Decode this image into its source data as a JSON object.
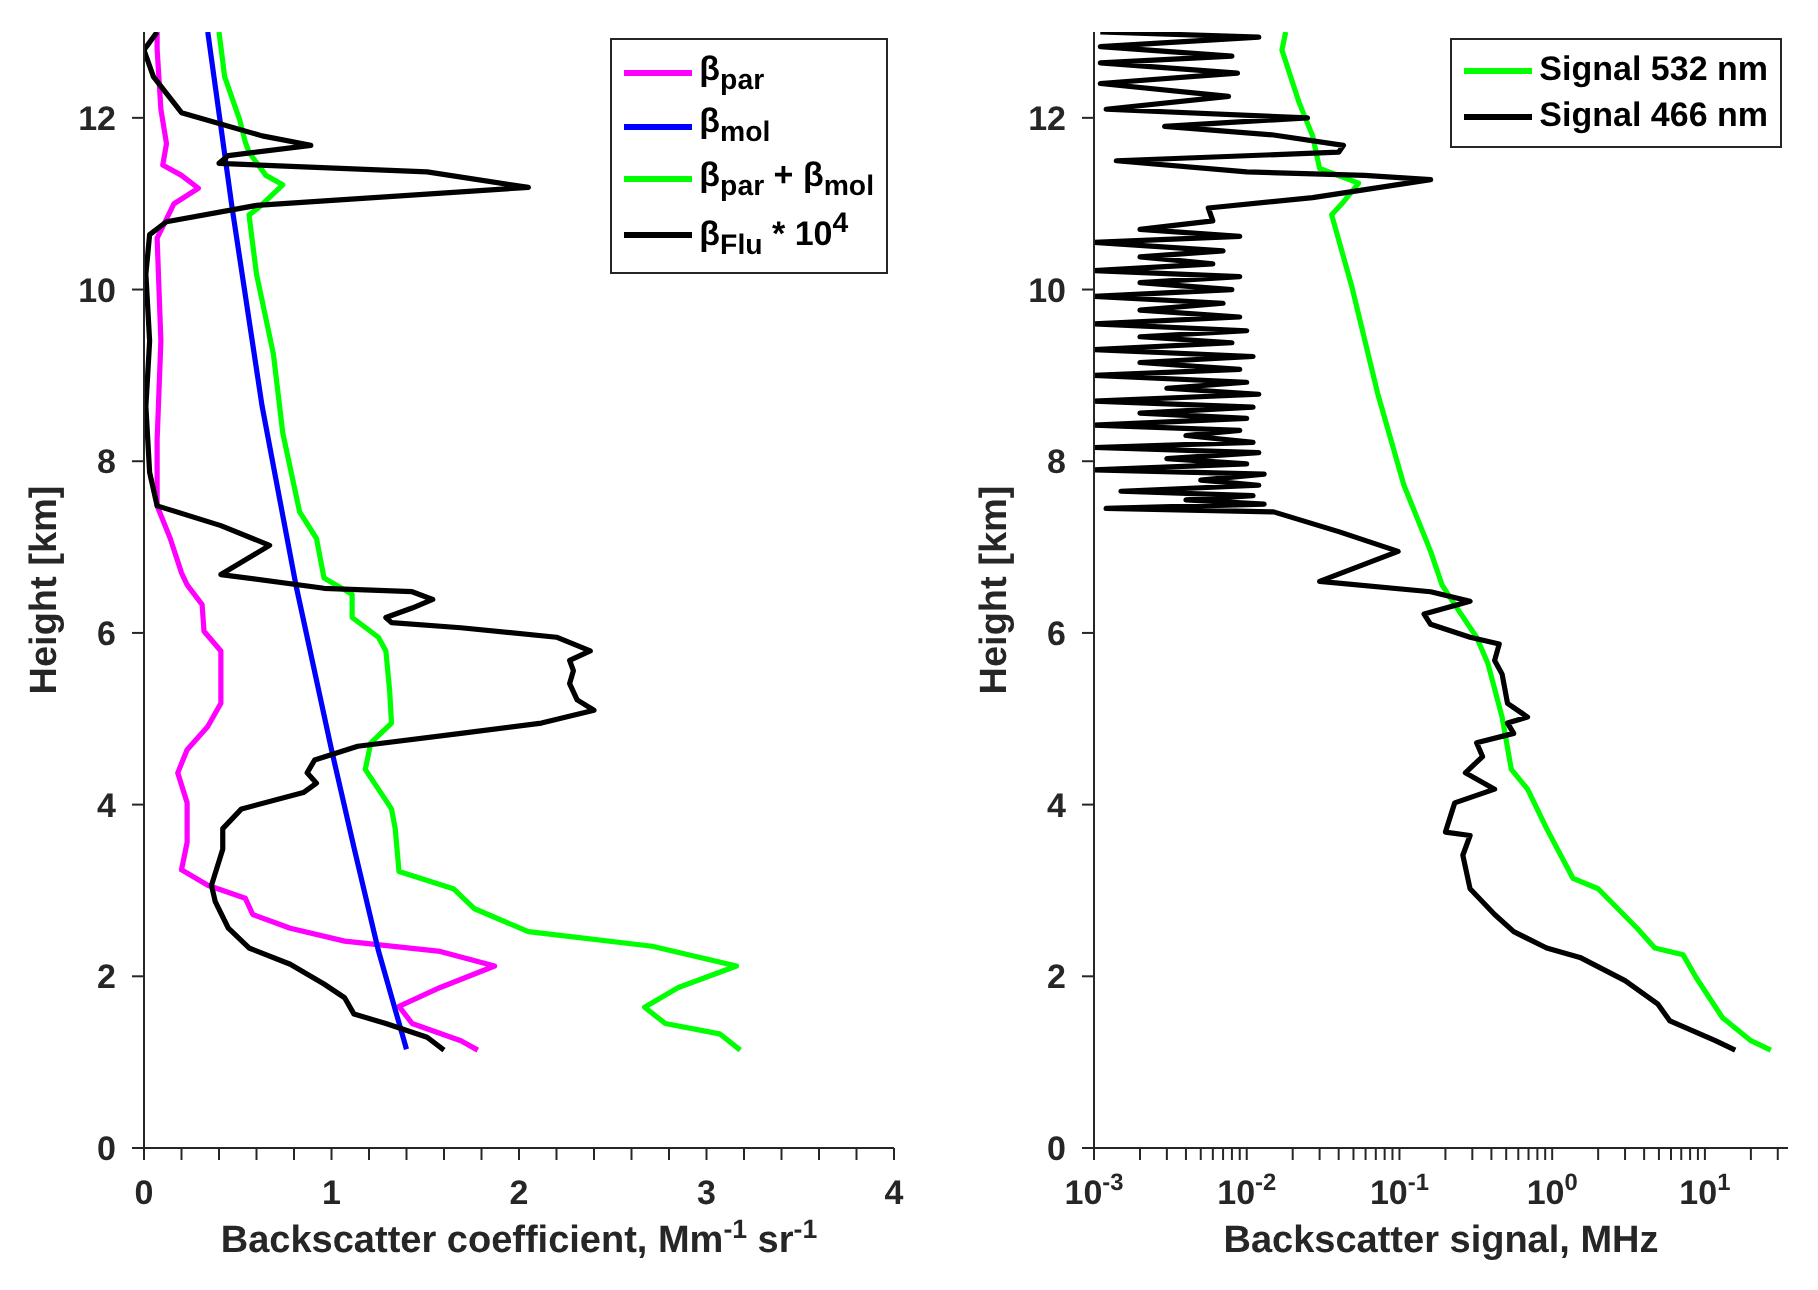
{
  "chart_data": [
    {
      "type": "line",
      "xlabel": "Backscatter coefficient, Mm$^{-1}$ sr$^{-1}$",
      "ylabel": "Height [km]",
      "xlim": [
        0,
        4
      ],
      "ylim": [
        0,
        13
      ],
      "xticks": [
        0,
        {
          "value": 0.2,
          "label": null
        },
        {
          "value": 0.4,
          "label": null
        },
        {
          "value": 0.6,
          "label": null
        },
        {
          "value": 0.8,
          "label": null
        },
        1,
        {
          "value": 1.2,
          "label": null
        },
        {
          "value": 1.4,
          "label": null
        },
        {
          "value": 1.6,
          "label": null
        },
        {
          "value": 1.8,
          "label": null
        },
        2,
        {
          "value": 2.2,
          "label": null
        },
        {
          "value": 2.4,
          "label": null
        },
        {
          "value": 2.6,
          "label": null
        },
        {
          "value": 2.8,
          "label": null
        },
        3,
        {
          "value": 3.2,
          "label": null
        },
        {
          "value": 3.4,
          "label": null
        },
        {
          "value": 3.6,
          "label": null
        },
        {
          "value": 3.8,
          "label": null
        },
        4
      ],
      "yticks": [
        0,
        2,
        4,
        6,
        8,
        10,
        12
      ],
      "legend": "top right",
      "marker": "none",
      "grid": false,
      "series": [
        {
          "name": "β$_{par}$",
          "color": "#ff00ff",
          "x": [
            1.78,
            1.69,
            1.43,
            1.36,
            1.58,
            1.87,
            1.58,
            1.07,
            0.78,
            0.58,
            0.54,
            0.34,
            0.2,
            0.23,
            0.23,
            0.18,
            0.23,
            0.34,
            0.41,
            0.41,
            0.32,
            0.31,
            0.23,
            0.2,
            0.14,
            0.07,
            0.07,
            0.09,
            0.07,
            0.16,
            0.29,
            0.2,
            0.1,
            0.12,
            0.09,
            0.07,
            0.07
          ],
          "values": [
            1.14,
            1.25,
            1.45,
            1.65,
            1.87,
            2.12,
            2.29,
            2.41,
            2.56,
            2.72,
            2.91,
            3.06,
            3.24,
            3.56,
            4.02,
            4.37,
            4.64,
            4.91,
            5.18,
            5.79,
            6.02,
            6.33,
            6.56,
            6.7,
            7.1,
            7.48,
            8.25,
            9.4,
            10.6,
            11.0,
            11.18,
            11.33,
            11.45,
            11.7,
            12.1,
            12.8,
            13
          ]
        },
        {
          "name": "β$_{mol}$",
          "color": "#0000ff",
          "x": [
            1.4,
            1.25,
            1.12,
            1.0,
            0.81,
            0.63,
            0.47,
            0.34
          ],
          "values": [
            1.15,
            2.3,
            3.5,
            4.64,
            6.56,
            8.64,
            10.95,
            13
          ]
        },
        {
          "name": "β$_{par}$ + β$_{mol}$",
          "color": "#00ff00",
          "x": [
            3.18,
            3.07,
            2.78,
            2.67,
            2.85,
            3.16,
            2.71,
            2.05,
            1.76,
            1.65,
            1.36,
            1.34,
            1.32,
            1.18,
            1.21,
            1.32,
            1.31,
            1.29,
            1.25,
            1.11,
            1.11,
            0.96,
            0.92,
            0.83,
            0.74,
            0.69,
            0.6,
            0.56,
            0.61,
            0.74,
            0.65,
            0.56,
            0.54,
            0.51,
            0.43,
            0.4
          ],
          "values": [
            1.14,
            1.33,
            1.45,
            1.64,
            1.87,
            2.12,
            2.35,
            2.52,
            2.79,
            3.02,
            3.22,
            3.72,
            3.95,
            4.41,
            4.72,
            4.95,
            5.33,
            5.79,
            5.95,
            6.18,
            6.45,
            6.64,
            7.1,
            7.41,
            8.33,
            9.25,
            10.18,
            10.87,
            10.95,
            11.22,
            11.33,
            11.6,
            11.72,
            11.98,
            12.48,
            13
          ]
        },
        {
          "name": "β$_{Flu}$ * 10$^{4}$",
          "color": "#000000",
          "x": [
            1.6,
            1.51,
            1.29,
            1.12,
            1.07,
            0.96,
            0.78,
            0.56,
            0.45,
            0.38,
            0.36,
            0.42,
            0.42,
            0.52,
            0.85,
            0.92,
            0.87,
            0.91,
            1.14,
            1.69,
            2.12,
            2.4,
            2.31,
            2.27,
            2.29,
            2.27,
            2.38,
            2.2,
            1.69,
            1.32,
            1.29,
            1.43,
            1.54,
            1.43,
            0.96,
            0.41,
            0.67,
            0.41,
            0.07,
            0.03,
            0.01,
            0.03,
            0.01,
            0.03,
            0.12,
            0.6,
            2.05,
            1.51,
            0.4,
            0.45,
            0.89,
            0.63,
            0.2,
            0.05,
            0,
            0.07
          ],
          "values": [
            1.14,
            1.29,
            1.45,
            1.56,
            1.75,
            1.91,
            2.14,
            2.33,
            2.56,
            2.87,
            3.06,
            3.48,
            3.72,
            3.95,
            4.14,
            4.25,
            4.37,
            4.52,
            4.68,
            4.83,
            4.95,
            5.1,
            5.22,
            5.41,
            5.56,
            5.68,
            5.79,
            5.95,
            6.06,
            6.12,
            6.18,
            6.29,
            6.39,
            6.48,
            6.52,
            6.68,
            7.02,
            7.25,
            7.48,
            7.87,
            8.64,
            9.4,
            10.18,
            10.64,
            10.79,
            10.98,
            11.19,
            11.37,
            11.47,
            11.56,
            11.68,
            11.79,
            12.06,
            12.48,
            12.79,
            13
          ]
        }
      ]
    },
    {
      "type": "line",
      "xlabel": "Backscatter signal, MHz",
      "ylabel": "Height [km]",
      "log": "x",
      "xlim": [
        0.001,
        35
      ],
      "ylim": [
        0,
        13
      ],
      "xticks": [
        {
          "value": 0.001,
          "label": "10$^{-3}$"
        },
        {
          "value": 0.002,
          "label": null
        },
        {
          "value": 0.003,
          "label": null
        },
        {
          "value": 0.004,
          "label": null
        },
        {
          "value": 0.005,
          "label": null
        },
        {
          "value": 0.006,
          "label": null
        },
        {
          "value": 0.007,
          "label": null
        },
        {
          "value": 0.008,
          "label": null
        },
        {
          "value": 0.009,
          "label": null
        },
        {
          "value": 0.01,
          "label": "10$^{-2}$"
        },
        {
          "value": 0.02,
          "label": null
        },
        {
          "value": 0.03,
          "label": null
        },
        {
          "value": 0.04,
          "label": null
        },
        {
          "value": 0.05,
          "label": null
        },
        {
          "value": 0.06,
          "label": null
        },
        {
          "value": 0.07,
          "label": null
        },
        {
          "value": 0.08,
          "label": null
        },
        {
          "value": 0.09,
          "label": null
        },
        {
          "value": 0.1,
          "label": "10$^{-1}$"
        },
        {
          "value": 0.2,
          "label": null
        },
        {
          "value": 0.3,
          "label": null
        },
        {
          "value": 0.4,
          "label": null
        },
        {
          "value": 0.5,
          "label": null
        },
        {
          "value": 0.6,
          "label": null
        },
        {
          "value": 0.7,
          "label": null
        },
        {
          "value": 0.8,
          "label": null
        },
        {
          "value": 0.9,
          "label": null
        },
        {
          "value": 1,
          "label": "10$^{0}$"
        },
        {
          "value": 2,
          "label": null
        },
        {
          "value": 3,
          "label": null
        },
        {
          "value": 4,
          "label": null
        },
        {
          "value": 5,
          "label": null
        },
        {
          "value": 6,
          "label": null
        },
        {
          "value": 7,
          "label": null
        },
        {
          "value": 8,
          "label": null
        },
        {
          "value": 9,
          "label": null
        },
        {
          "value": 10,
          "label": "10$^{1}$"
        },
        {
          "value": 20,
          "label": null
        },
        {
          "value": 30,
          "label": null
        }
      ],
      "yticks": [
        0,
        2,
        4,
        6,
        8,
        10,
        12
      ],
      "legend": "top right",
      "marker": "none",
      "grid": false,
      "series": [
        {
          "name": "Signal 532 nm",
          "color": "#00ff00",
          "x": [
            27,
            20,
            13,
            8.8,
            7.2,
            4.7,
            3.6,
            2.0,
            1.37,
            0.92,
            0.69,
            0.54,
            0.47,
            0.38,
            0.32,
            0.23,
            0.19,
            0.16,
            0.107,
            0.072,
            0.049,
            0.036,
            0.043,
            0.054,
            0.03,
            0.027,
            0.022,
            0.017,
            0.018
          ],
          "values": [
            1.14,
            1.25,
            1.52,
            1.98,
            2.25,
            2.33,
            2.56,
            3.02,
            3.14,
            3.72,
            4.18,
            4.41,
            5.02,
            5.64,
            5.95,
            6.33,
            6.56,
            6.95,
            7.72,
            8.79,
            10.02,
            10.87,
            11.02,
            11.24,
            11.41,
            11.79,
            12.18,
            12.79,
            13
          ]
        },
        {
          "name": "Signal 466 nm",
          "color": "#000000",
          "x": [
            15.8,
            11.7,
            5.9,
            4.9,
            3.0,
            1.52,
            0.92,
            0.56,
            0.42,
            0.29,
            0.26,
            0.29,
            0.2,
            0.23,
            0.42,
            0.27,
            0.35,
            0.32,
            0.56,
            0.51,
            0.69,
            0.51,
            0.47,
            0.42,
            0.45,
            0.29,
            0.16,
            0.145,
            0.29,
            0.16,
            0.03,
            0.098,
            0.04,
            0.015,
            0.0012,
            0.013,
            0.004,
            0.011,
            0.0015,
            0.012,
            0.005,
            0.013,
            0.001,
            0.01,
            0.003,
            0.012,
            0.001,
            0.011,
            0.004,
            0.009,
            0.001,
            0.01,
            0.002,
            0.011,
            0.001,
            0.012,
            0.003,
            0.01,
            0.001,
            0.009,
            0.002,
            0.011,
            0.001,
            0.008,
            0.002,
            0.01,
            0.001,
            0.009,
            0.002,
            0.007,
            0.001,
            0.008,
            0.002,
            0.009,
            0.001,
            0.006,
            0.002,
            0.007,
            0.001,
            0.009,
            0.002,
            0.006,
            0.0056,
            0.027,
            0.16,
            0.059,
            0.01,
            0.0014,
            0.04,
            0.043,
            0.015,
            0.0029,
            0.025,
            0.0012,
            0.0076,
            0.0011,
            0.0087,
            0.0011,
            0.008,
            0.0011,
            0.012,
            0.0011
          ],
          "values": [
            1.14,
            1.25,
            1.48,
            1.68,
            1.95,
            2.22,
            2.33,
            2.52,
            2.72,
            3.02,
            3.41,
            3.64,
            3.68,
            4.02,
            4.18,
            4.37,
            4.56,
            4.72,
            4.83,
            4.95,
            5.02,
            5.18,
            5.52,
            5.68,
            5.87,
            5.95,
            6.1,
            6.22,
            6.37,
            6.48,
            6.6,
            6.95,
            7.18,
            7.41,
            7.45,
            7.5,
            7.55,
            7.6,
            7.65,
            7.72,
            7.78,
            7.85,
            7.9,
            7.97,
            8.03,
            8.1,
            8.16,
            8.22,
            8.3,
            8.36,
            8.42,
            8.5,
            8.56,
            8.63,
            8.7,
            8.78,
            8.85,
            8.92,
            9.0,
            9.07,
            9.15,
            9.22,
            9.3,
            9.38,
            9.45,
            9.52,
            9.6,
            9.68,
            9.76,
            9.84,
            9.92,
            10.0,
            10.08,
            10.15,
            10.22,
            10.3,
            10.38,
            10.45,
            10.55,
            10.62,
            10.7,
            10.8,
            10.95,
            11.07,
            11.28,
            11.33,
            11.37,
            11.5,
            11.6,
            11.68,
            11.8,
            11.9,
            12.0,
            12.1,
            12.25,
            12.4,
            12.52,
            12.64,
            12.72,
            12.83,
            12.94,
            13
          ]
        }
      ]
    }
  ]
}
